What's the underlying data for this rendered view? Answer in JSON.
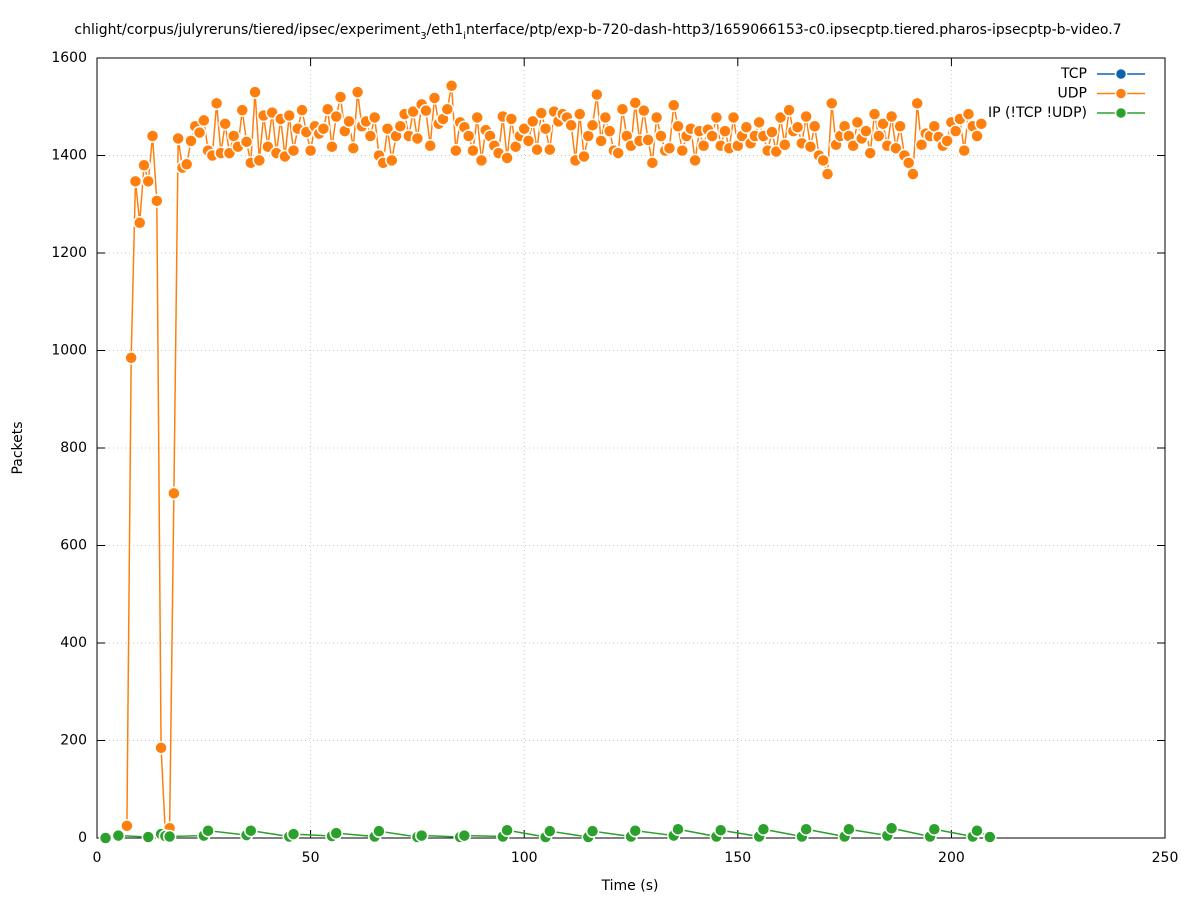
{
  "chart_data": {
    "type": "line",
    "title": [
      "chlight/corpus/julyreruns/tiered/ipsec/experiment",
      "3",
      "/eth1",
      "i",
      "nterface/ptp/exp-b-720-dash-http3/1659066153-c0.ipsecptp.tiered.pharos-ipsecptp-b-video.7"
    ],
    "xlabel": "Time (s)",
    "ylabel": "Packets",
    "xlim": [
      0,
      250
    ],
    "xticks": [
      0,
      50,
      100,
      150,
      200,
      250
    ],
    "ylim": [
      0,
      1600
    ],
    "yticks": [
      0,
      200,
      400,
      600,
      800,
      1000,
      1200,
      1400,
      1600
    ],
    "grid": true,
    "legend": "top-right",
    "series": [
      {
        "name": "TCP",
        "color": "#0f62ad",
        "x": [],
        "values": []
      },
      {
        "name": "UDP",
        "color": "#ff7f0e",
        "x": [
          7,
          8,
          9,
          10,
          11,
          12,
          13,
          14,
          15,
          16,
          17,
          18,
          19,
          20,
          21,
          22,
          23,
          24,
          25,
          26,
          27,
          28,
          29,
          30,
          31,
          32,
          33,
          34,
          35,
          36,
          37,
          38,
          39,
          40,
          41,
          42,
          43,
          44,
          45,
          46,
          47,
          48,
          49,
          50,
          51,
          52,
          53,
          54,
          55,
          56,
          57,
          58,
          59,
          60,
          61,
          62,
          63,
          64,
          65,
          66,
          67,
          68,
          69,
          70,
          71,
          72,
          73,
          74,
          75,
          76,
          77,
          78,
          79,
          80,
          81,
          82,
          83,
          84,
          85,
          86,
          87,
          88,
          89,
          90,
          91,
          92,
          93,
          94,
          95,
          96,
          97,
          98,
          99,
          100,
          101,
          102,
          103,
          104,
          105,
          106,
          107,
          108,
          109,
          110,
          111,
          112,
          113,
          114,
          115,
          116,
          117,
          118,
          119,
          120,
          121,
          122,
          123,
          124,
          125,
          126,
          127,
          128,
          129,
          130,
          131,
          132,
          133,
          134,
          135,
          136,
          137,
          138,
          139,
          140,
          141,
          142,
          143,
          144,
          145,
          146,
          147,
          148,
          149,
          150,
          151,
          152,
          153,
          154,
          155,
          156,
          157,
          158,
          159,
          160,
          161,
          162,
          163,
          164,
          165,
          166,
          167,
          168,
          169,
          170,
          171,
          172,
          173,
          174,
          175,
          176,
          177,
          178,
          179,
          180,
          181,
          182,
          183,
          184,
          185,
          186,
          187,
          188,
          189,
          190,
          191,
          192,
          193,
          194,
          195,
          196,
          197,
          198,
          199,
          200,
          201,
          202,
          203,
          204,
          205,
          206,
          207
        ],
        "values": [
          25,
          985,
          1347,
          1262,
          1380,
          1347,
          1440,
          1307,
          185,
          10,
          20,
          707,
          1435,
          1375,
          1382,
          1430,
          1460,
          1447,
          1472,
          1410,
          1400,
          1507,
          1405,
          1465,
          1405,
          1440,
          1418,
          1493,
          1428,
          1385,
          1530,
          1390,
          1482,
          1418,
          1488,
          1405,
          1475,
          1398,
          1482,
          1410,
          1455,
          1493,
          1448,
          1410,
          1460,
          1445,
          1455,
          1495,
          1418,
          1480,
          1520,
          1450,
          1470,
          1415,
          1530,
          1460,
          1470,
          1440,
          1478,
          1400,
          1385,
          1455,
          1390,
          1440,
          1460,
          1485,
          1440,
          1490,
          1435,
          1505,
          1492,
          1420,
          1518,
          1465,
          1475,
          1495,
          1543,
          1410,
          1468,
          1458,
          1440,
          1410,
          1478,
          1390,
          1452,
          1440,
          1420,
          1405,
          1480,
          1395,
          1475,
          1418,
          1440,
          1455,
          1430,
          1470,
          1412,
          1487,
          1455,
          1412,
          1490,
          1470,
          1485,
          1478,
          1462,
          1390,
          1485,
          1398,
          1440,
          1462,
          1525,
          1430,
          1478,
          1450,
          1410,
          1405,
          1495,
          1440,
          1420,
          1508,
          1430,
          1492,
          1432,
          1385,
          1478,
          1440,
          1410,
          1415,
          1503,
          1460,
          1410,
          1440,
          1455,
          1390,
          1450,
          1420,
          1453,
          1440,
          1478,
          1420,
          1450,
          1415,
          1478,
          1420,
          1440,
          1458,
          1425,
          1440,
          1468,
          1440,
          1410,
          1448,
          1408,
          1478,
          1422,
          1493,
          1450,
          1458,
          1425,
          1480,
          1418,
          1460,
          1400,
          1390,
          1362,
          1507,
          1422,
          1440,
          1460,
          1440,
          1420,
          1468,
          1435,
          1450,
          1405,
          1485,
          1440,
          1465,
          1420,
          1480,
          1415,
          1460,
          1400,
          1385,
          1362,
          1507,
          1422,
          1445,
          1440,
          1460,
          1438,
          1420,
          1430,
          1468,
          1450,
          1475,
          1410,
          1485,
          1460,
          1440,
          1465
        ]
      },
      {
        "name": "IP (!TCP  !UDP)",
        "color": "#2ca02c",
        "x": [
          2,
          5,
          12,
          15,
          16,
          17,
          25,
          26,
          35,
          36,
          45,
          46,
          55,
          56,
          65,
          66,
          75,
          76,
          85,
          86,
          95,
          96,
          105,
          106,
          115,
          116,
          125,
          126,
          135,
          136,
          145,
          146,
          155,
          156,
          165,
          166,
          175,
          176,
          185,
          186,
          195,
          196,
          205,
          206,
          209
        ],
        "values": [
          0,
          5,
          2,
          8,
          4,
          3,
          5,
          15,
          6,
          15,
          3,
          8,
          4,
          10,
          3,
          14,
          2,
          5,
          2,
          5,
          3,
          16,
          2,
          14,
          2,
          14,
          3,
          15,
          5,
          18,
          3,
          16,
          3,
          18,
          3,
          18,
          3,
          18,
          5,
          20,
          3,
          18,
          3,
          15,
          2
        ]
      }
    ]
  }
}
